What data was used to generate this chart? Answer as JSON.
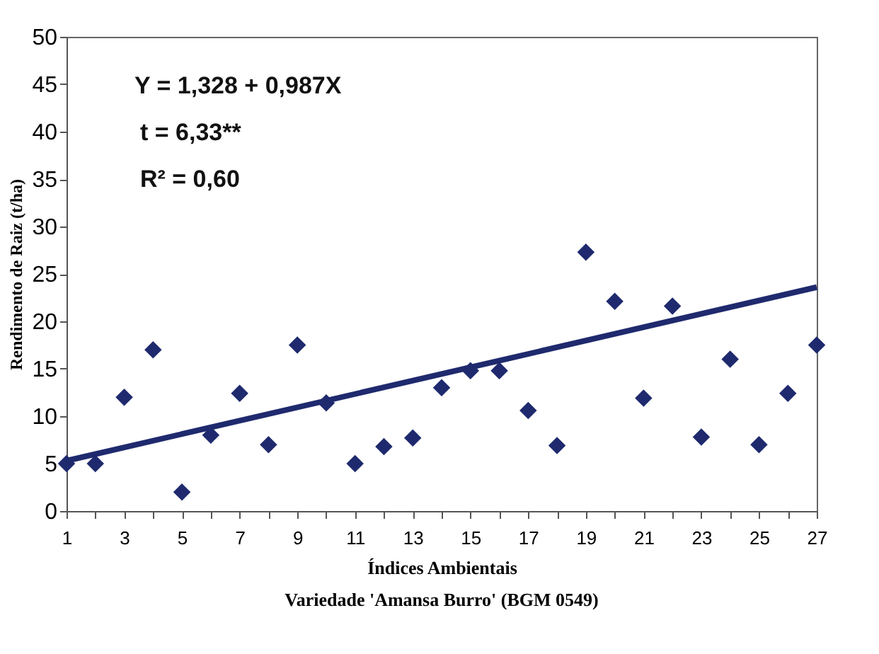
{
  "chart_data": {
    "type": "scatter",
    "title": "Variedade  'Amansa Burro' (BGM 0549)",
    "xlabel": "Índices Ambientais",
    "ylabel": "Rendimento de Raiz (t/ha)",
    "annotations": [
      "Y = 1,328 + 0,987X",
      "t = 6,33**",
      "R² = 0,60"
    ],
    "grid": false,
    "xlim": [
      1,
      27
    ],
    "ylim": [
      0,
      50
    ],
    "xticks": [
      1,
      {
        "value": 2,
        "label": null
      },
      3,
      {
        "value": 4,
        "label": null
      },
      5,
      {
        "value": 6,
        "label": null
      },
      7,
      {
        "value": 8,
        "label": null
      },
      9,
      {
        "value": 10,
        "label": null
      },
      11,
      {
        "value": 12,
        "label": null
      },
      13,
      {
        "value": 14,
        "label": null
      },
      15,
      {
        "value": 16,
        "label": null
      },
      17,
      {
        "value": 18,
        "label": null
      },
      19,
      {
        "value": 20,
        "label": null
      },
      21,
      {
        "value": 22,
        "label": null
      },
      23,
      {
        "value": 24,
        "label": null
      },
      25,
      {
        "value": 26,
        "label": null
      },
      27
    ],
    "yticks": [
      0,
      5,
      10,
      15,
      20,
      25,
      30,
      35,
      40,
      45,
      50
    ],
    "series": [
      {
        "marker": "diamond",
        "color": "#1f2a6e",
        "x": [
          1,
          2,
          3,
          4,
          5,
          6,
          7,
          8,
          9,
          10,
          11,
          12,
          13,
          14,
          15,
          16,
          17,
          18,
          19,
          20,
          21,
          22,
          23,
          24,
          25,
          26,
          27
        ],
        "values": [
          5,
          5,
          12,
          17,
          2,
          8,
          12.4,
          7,
          17.5,
          11.4,
          5,
          6.8,
          7.7,
          13,
          14.8,
          14.8,
          10.6,
          6.9,
          27.3,
          22.1,
          11.9,
          21.6,
          7.8,
          16,
          7,
          12.4,
          17.5
        ]
      },
      {
        "type": "line",
        "marker": "none",
        "color": "#1f2a6e",
        "line_style": "solid",
        "x": [
          1,
          27
        ],
        "values": [
          5.3,
          23.6
        ]
      }
    ]
  }
}
